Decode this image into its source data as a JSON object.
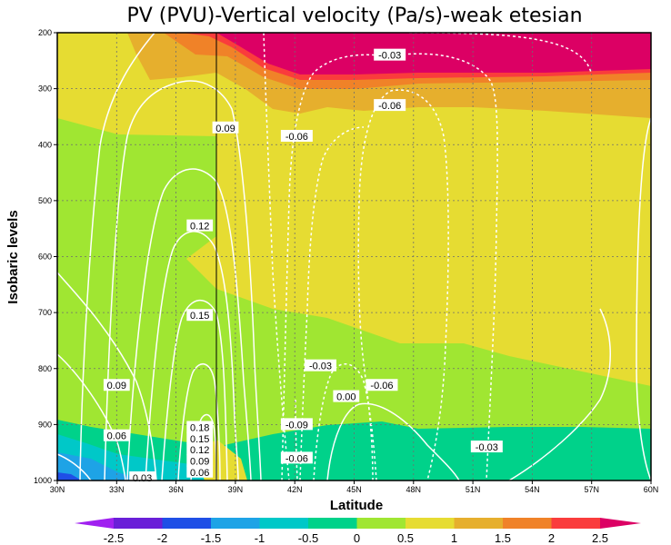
{
  "chart_data": {
    "type": "heatmap",
    "title": "PV (PVU)-Vertical velocity (Pa/s)-weak etesian",
    "xlabel": "Latitude",
    "ylabel": "Isobaric levels",
    "x_ticks": [
      "30N",
      "33N",
      "36N",
      "39N",
      "42N",
      "45N",
      "48N",
      "51N",
      "54N",
      "57N",
      "60N"
    ],
    "y_ticks": [
      "200",
      "300",
      "400",
      "500",
      "600",
      "700",
      "800",
      "900",
      "1000"
    ],
    "xlim": [
      30,
      60
    ],
    "ylim": [
      200,
      1000
    ],
    "grid": true,
    "filled_field": "PV (PVU)",
    "contour_field": "Vertical velocity (Pa/s)",
    "colorbar": {
      "labels": [
        "-2.5",
        "-2",
        "-1.5",
        "-1",
        "-0.5",
        "0",
        "0.5",
        "1",
        "1.5",
        "2",
        "2.5"
      ],
      "colors": [
        "#a020f0",
        "#6a1fd8",
        "#1f4fe6",
        "#1ea3e6",
        "#00c8c8",
        "#00d28a",
        "#a0e632",
        "#e6dc32",
        "#e6af2d",
        "#f08228",
        "#fa3c3c",
        "#dc0064"
      ]
    },
    "contour_labels": [
      {
        "value": "-0.03",
        "lat": 46.8,
        "p": 240
      },
      {
        "value": "-0.06",
        "lat": 46.8,
        "p": 330
      },
      {
        "value": "0.09",
        "lat": 38.5,
        "p": 370
      },
      {
        "value": "-0.06",
        "lat": 42.1,
        "p": 385
      },
      {
        "value": "0.12",
        "lat": 37.2,
        "p": 545
      },
      {
        "value": "0.15",
        "lat": 37.2,
        "p": 705
      },
      {
        "value": "0.09",
        "lat": 33.0,
        "p": 830
      },
      {
        "value": "-0.03",
        "lat": 43.3,
        "p": 795
      },
      {
        "value": "-0.06",
        "lat": 46.4,
        "p": 830
      },
      {
        "value": "0.00",
        "lat": 44.6,
        "p": 850
      },
      {
        "value": "0.06",
        "lat": 33.0,
        "p": 920
      },
      {
        "value": "-0.09",
        "lat": 42.1,
        "p": 900
      },
      {
        "value": "0.18",
        "lat": 37.2,
        "p": 905
      },
      {
        "value": "0.15",
        "lat": 37.2,
        "p": 925
      },
      {
        "value": "0.12",
        "lat": 37.2,
        "p": 945
      },
      {
        "value": "0.09",
        "lat": 37.2,
        "p": 965
      },
      {
        "value": "0.06",
        "lat": 37.2,
        "p": 985
      },
      {
        "value": "-0.06",
        "lat": 42.1,
        "p": 960
      },
      {
        "value": "-0.03",
        "lat": 51.7,
        "p": 940
      },
      {
        "value": "0.03",
        "lat": 34.3,
        "p": 995
      }
    ]
  }
}
